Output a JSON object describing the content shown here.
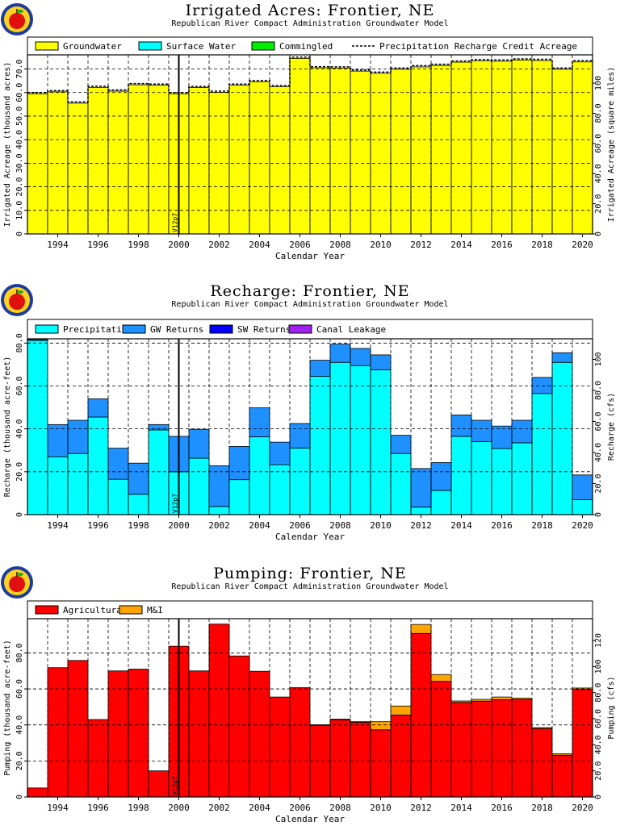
{
  "colors": {
    "groundwater": "#ffff00",
    "surface_water": "#00ffff",
    "commingled": "#00ee00",
    "precipitation": "#00ffff",
    "gw_returns": "#1e90ff",
    "sw_returns": "#0000ff",
    "canal_leakage": "#a020f0",
    "agricultural": "#ff0000",
    "mi": "#ffa500"
  },
  "marker_label": "V12p7",
  "chart_data": [
    {
      "id": "irrigated",
      "type": "bar",
      "stacked": true,
      "title": "Irrigated Acres: Frontier, NE",
      "subtitle": "Republican River Compact Administration Groundwater Model",
      "xlabel": "Calendar Year",
      "ylabel": "Irrigated Acreage (thousand acres)",
      "ylabel_right": "Irrigated Acreage (square miles)",
      "ylim": [
        0,
        76
      ],
      "yticks": [
        0,
        10,
        20,
        30,
        40,
        50,
        60,
        70
      ],
      "ytick_labels": [
        "0",
        "10.0",
        "20.0",
        "30.0",
        "40.0",
        "50.0",
        "60.0",
        "70.0"
      ],
      "right_factor": 1.5625,
      "right_ticks": [
        0,
        20,
        40,
        60,
        80,
        100
      ],
      "right_tick_labels": [
        "0",
        "20.0",
        "40.0",
        "60.0",
        "80.0",
        "100"
      ],
      "x": [
        1993,
        1994,
        1995,
        1996,
        1997,
        1998,
        1999,
        2000,
        2001,
        2002,
        2003,
        2004,
        2005,
        2006,
        2007,
        2008,
        2009,
        2010,
        2011,
        2012,
        2013,
        2014,
        2015,
        2016,
        2017,
        2018,
        2019,
        2020
      ],
      "xtick_labels": [
        "1994",
        "1996",
        "1998",
        "2000",
        "2002",
        "2004",
        "2006",
        "2008",
        "2010",
        "2012",
        "2014",
        "2016",
        "2018",
        "2020"
      ],
      "grid": true,
      "legend_position": "top",
      "series": [
        {
          "name": "Groundwater",
          "color_key": "groundwater",
          "values": [
            59.5,
            60.3,
            55.5,
            62.2,
            60.6,
            63.3,
            63.1,
            59.5,
            62.1,
            60.1,
            63.1,
            64.6,
            62.5,
            74.5,
            70.5,
            70.4,
            69.1,
            68.2,
            69.9,
            70.9,
            71.5,
            72.9,
            73.5,
            73.3,
            73.8,
            73.6,
            69.9,
            73.0
          ]
        },
        {
          "name": "Surface Water",
          "color_key": "surface_water",
          "values": [
            0,
            0,
            0,
            0,
            0,
            0,
            0,
            0,
            0,
            0,
            0,
            0,
            0,
            0,
            0,
            0,
            0,
            0,
            0,
            0,
            0,
            0,
            0,
            0,
            0,
            0,
            0,
            0
          ]
        },
        {
          "name": "Commingled",
          "color_key": "commingled",
          "values": [
            0,
            0,
            0,
            0,
            0,
            0,
            0,
            0,
            0,
            0,
            0,
            0,
            0,
            0,
            0,
            0,
            0,
            0,
            0,
            0,
            0,
            0,
            0,
            0,
            0,
            0,
            0,
            0
          ]
        },
        {
          "name": "Precipitation Recharge Credit Acreage",
          "style": "dashed-step",
          "values": [
            60.0,
            60.8,
            56.0,
            62.7,
            61.1,
            63.8,
            63.6,
            60.0,
            62.6,
            60.6,
            63.6,
            65.1,
            63.0,
            75.0,
            71.0,
            70.9,
            69.6,
            68.7,
            70.4,
            71.4,
            72.0,
            73.4,
            74.0,
            73.8,
            74.3,
            74.1,
            70.4,
            73.5
          ]
        }
      ]
    },
    {
      "id": "recharge",
      "type": "bar",
      "stacked": true,
      "title": "Recharge: Frontier, NE",
      "subtitle": "Republican River Compact Administration Groundwater Model",
      "xlabel": "Calendar Year",
      "ylabel": "Recharge (thousand acre-feet)",
      "ylabel_right": "Recharge (cfs)",
      "ylim": [
        0,
        82
      ],
      "yticks": [
        0,
        20,
        40,
        60,
        80
      ],
      "ytick_labels": [
        "0",
        "20.0",
        "40.0",
        "60.0",
        "80.0"
      ],
      "right_factor": 1.381,
      "right_ticks": [
        0,
        20,
        40,
        60,
        80,
        100
      ],
      "right_tick_labels": [
        "0",
        "20.0",
        "40.0",
        "60.0",
        "80.0",
        "100"
      ],
      "x": [
        1993,
        1994,
        1995,
        1996,
        1997,
        1998,
        1999,
        2000,
        2001,
        2002,
        2003,
        2004,
        2005,
        2006,
        2007,
        2008,
        2009,
        2010,
        2011,
        2012,
        2013,
        2014,
        2015,
        2016,
        2017,
        2018,
        2019,
        2020
      ],
      "xtick_labels": [
        "1994",
        "1996",
        "1998",
        "2000",
        "2002",
        "2004",
        "2006",
        "2008",
        "2010",
        "2012",
        "2014",
        "2016",
        "2018",
        "2020"
      ],
      "grid": true,
      "legend_position": "top",
      "series": [
        {
          "name": "Precipitation",
          "color_key": "precipitation",
          "values": [
            81.2,
            27.0,
            28.5,
            45.5,
            16.5,
            9.5,
            39.5,
            20.0,
            26.3,
            3.8,
            16.3,
            36.3,
            23.3,
            31.0,
            64.5,
            71.0,
            69.5,
            67.5,
            28.5,
            3.5,
            11.3,
            36.5,
            34.0,
            30.8,
            33.5,
            56.5,
            71.0,
            7.0
          ]
        },
        {
          "name": "GW Returns",
          "color_key": "gw_returns",
          "values": [
            0.5,
            15.0,
            15.5,
            8.5,
            14.5,
            14.5,
            2.5,
            16.5,
            13.5,
            19.0,
            15.5,
            13.5,
            10.5,
            11.5,
            7.5,
            8.5,
            8.0,
            7.0,
            8.5,
            18.0,
            13.0,
            10.0,
            10.0,
            10.5,
            10.5,
            7.5,
            4.5,
            11.5
          ]
        },
        {
          "name": "SW Returns",
          "color_key": "sw_returns",
          "values": [
            0,
            0,
            0,
            0,
            0,
            0,
            0,
            0,
            0,
            0,
            0,
            0,
            0,
            0,
            0,
            0,
            0,
            0,
            0,
            0,
            0,
            0,
            0,
            0,
            0,
            0,
            0,
            0
          ]
        },
        {
          "name": "Canal Leakage",
          "color_key": "canal_leakage",
          "values": [
            0,
            0,
            0,
            0,
            0,
            0,
            0,
            0,
            0,
            0,
            0,
            0,
            0,
            0,
            0,
            0,
            0,
            0,
            0,
            0,
            0,
            0,
            0,
            0,
            0,
            0,
            0,
            0
          ]
        }
      ]
    },
    {
      "id": "pumping",
      "type": "bar",
      "stacked": true,
      "title": "Pumping: Frontier, NE",
      "subtitle": "Republican River Compact Administration Groundwater Model",
      "xlabel": "Calendar Year",
      "ylabel": "Pumping (thousand acre-feet)",
      "ylabel_right": "Pumping (cfs)",
      "ylim": [
        0,
        99
      ],
      "yticks": [
        0,
        20,
        40,
        60,
        80
      ],
      "ytick_labels": [
        "0",
        "20.0",
        "40.0",
        "60.0",
        "80.0"
      ],
      "right_factor": 1.381,
      "right_ticks": [
        0,
        20,
        40,
        60,
        80,
        100,
        120
      ],
      "right_tick_labels": [
        "0",
        "20.0",
        "40.0",
        "60.0",
        "80.0",
        "100",
        "120"
      ],
      "x": [
        1993,
        1994,
        1995,
        1996,
        1997,
        1998,
        1999,
        2000,
        2001,
        2002,
        2003,
        2004,
        2005,
        2006,
        2007,
        2008,
        2009,
        2010,
        2011,
        2012,
        2013,
        2014,
        2015,
        2016,
        2017,
        2018,
        2019,
        2020
      ],
      "xtick_labels": [
        "1994",
        "1996",
        "1998",
        "2000",
        "2002",
        "2004",
        "2006",
        "2008",
        "2010",
        "2012",
        "2014",
        "2016",
        "2018",
        "2020"
      ],
      "grid": true,
      "legend_position": "top",
      "series": [
        {
          "name": "Agricultural",
          "color_key": "agricultural",
          "values": [
            5.0,
            71.8,
            75.8,
            43.0,
            70.0,
            71.0,
            14.5,
            83.7,
            70.0,
            96.0,
            78.3,
            69.8,
            55.5,
            60.7,
            39.8,
            42.9,
            41.5,
            37.3,
            45.5,
            90.8,
            64.2,
            52.5,
            53.2,
            54.0,
            54.1,
            38.0,
            23.2,
            59.7
          ]
        },
        {
          "name": "M&I",
          "color_key": "mi",
          "values": [
            0,
            0,
            0,
            0,
            0,
            0,
            0,
            0,
            0,
            0,
            0,
            0,
            0,
            0,
            0.3,
            0.3,
            0.3,
            4.5,
            5.0,
            5.0,
            3.8,
            0.8,
            1.0,
            1.5,
            0.8,
            0.5,
            0.8,
            0.8
          ]
        }
      ]
    }
  ]
}
